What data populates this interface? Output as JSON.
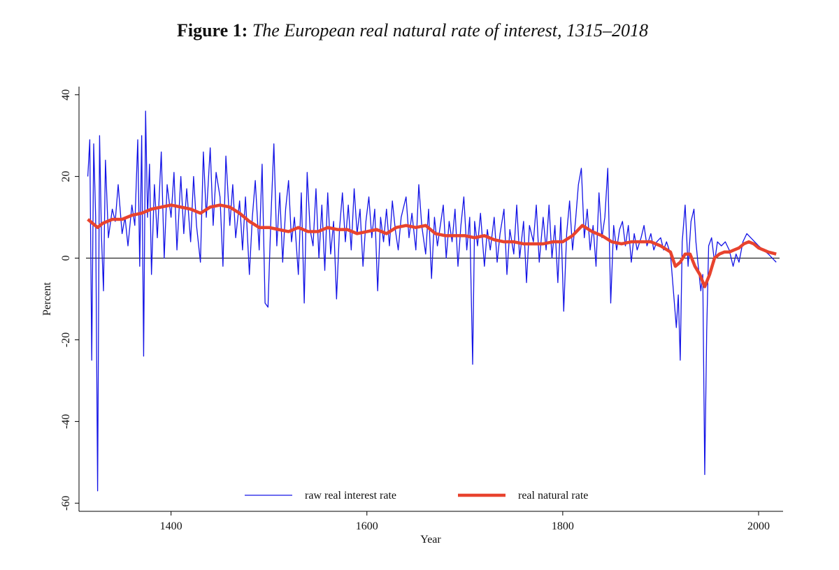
{
  "chart_data": {
    "type": "line",
    "title_label": "Figure 1:",
    "title": "The European real natural rate of interest, 1315–2018",
    "x_label": "Year",
    "y_label": "Percent",
    "xlim": [
      1306,
      2025
    ],
    "ylim": [
      -62,
      42
    ],
    "xticks": [
      1400,
      1600,
      1800,
      2000
    ],
    "yticks": [
      -60,
      -40,
      -20,
      0,
      20,
      40
    ],
    "reference_line": 0,
    "grid": false,
    "legend": "bottom",
    "series": [
      {
        "name": "raw real interest rate",
        "color": "#1414e6",
        "width": 1.3,
        "x": [
          1315,
          1317,
          1319,
          1321,
          1323,
          1325,
          1327,
          1329,
          1331,
          1333,
          1336,
          1340,
          1343,
          1346,
          1350,
          1353,
          1356,
          1360,
          1363,
          1366,
          1368,
          1370,
          1372,
          1374,
          1376,
          1378,
          1380,
          1383,
          1386,
          1390,
          1393,
          1396,
          1400,
          1403,
          1406,
          1410,
          1413,
          1416,
          1420,
          1423,
          1426,
          1430,
          1433,
          1436,
          1440,
          1443,
          1446,
          1450,
          1453,
          1456,
          1460,
          1463,
          1466,
          1470,
          1473,
          1476,
          1480,
          1483,
          1486,
          1490,
          1493,
          1496,
          1499,
          1502,
          1505,
          1508,
          1511,
          1514,
          1517,
          1520,
          1523,
          1526,
          1530,
          1533,
          1536,
          1539,
          1542,
          1545,
          1548,
          1551,
          1554,
          1557,
          1560,
          1563,
          1566,
          1569,
          1572,
          1575,
          1578,
          1581,
          1584,
          1587,
          1590,
          1593,
          1596,
          1599,
          1602,
          1605,
          1608,
          1611,
          1614,
          1617,
          1620,
          1623,
          1626,
          1629,
          1632,
          1635,
          1640,
          1643,
          1646,
          1650,
          1653,
          1656,
          1660,
          1663,
          1666,
          1669,
          1672,
          1675,
          1678,
          1681,
          1684,
          1687,
          1690,
          1693,
          1696,
          1699,
          1702,
          1705,
          1708,
          1710,
          1713,
          1716,
          1720,
          1723,
          1726,
          1730,
          1733,
          1736,
          1740,
          1743,
          1746,
          1750,
          1753,
          1756,
          1760,
          1763,
          1766,
          1770,
          1773,
          1776,
          1780,
          1783,
          1786,
          1789,
          1792,
          1795,
          1798,
          1801,
          1804,
          1807,
          1810,
          1813,
          1816,
          1819,
          1822,
          1825,
          1828,
          1831,
          1834,
          1837,
          1840,
          1843,
          1846,
          1849,
          1852,
          1855,
          1858,
          1861,
          1864,
          1867,
          1870,
          1873,
          1876,
          1880,
          1883,
          1886,
          1890,
          1893,
          1896,
          1900,
          1903,
          1906,
          1910,
          1913,
          1916,
          1918,
          1920,
          1922,
          1925,
          1928,
          1931,
          1934,
          1936,
          1938,
          1941,
          1943,
          1945,
          1947,
          1949,
          1952,
          1955,
          1958,
          1962,
          1966,
          1970,
          1974,
          1977,
          1980,
          1984,
          1988,
          1992,
          1996,
          2000,
          2005,
          2010,
          2014,
          2018
        ],
        "values": [
          20,
          29,
          -25,
          28,
          10,
          -57,
          30,
          5,
          -8,
          24,
          5,
          12,
          9,
          18,
          6,
          10,
          3,
          13,
          8,
          29,
          -2,
          30,
          -24,
          36,
          10,
          23,
          -4,
          18,
          5,
          26,
          0,
          18,
          10,
          21,
          2,
          20,
          6,
          17,
          4,
          20,
          8,
          -1,
          26,
          10,
          27,
          8,
          21,
          15,
          -2,
          25,
          8,
          18,
          5,
          14,
          2,
          15,
          -4,
          10,
          19,
          2,
          23,
          -11,
          -12,
          10,
          28,
          3,
          16,
          -1,
          12,
          19,
          4,
          10,
          -4,
          16,
          -11,
          21,
          7,
          3,
          17,
          0,
          13,
          -3,
          16,
          1,
          9,
          -10,
          7,
          16,
          4,
          13,
          2,
          17,
          6,
          12,
          -2,
          9,
          15,
          5,
          12,
          -8,
          10,
          4,
          12,
          3,
          14,
          7,
          2,
          10,
          15,
          5,
          11,
          2,
          18,
          8,
          1,
          12,
          -5,
          10,
          3,
          8,
          13,
          0,
          9,
          4,
          12,
          -2,
          8,
          15,
          2,
          10,
          -26,
          9,
          3,
          11,
          -2,
          7,
          2,
          10,
          -1,
          6,
          12,
          -4,
          7,
          1,
          13,
          0,
          9,
          -6,
          8,
          4,
          13,
          -1,
          10,
          2,
          13,
          0,
          8,
          -6,
          10,
          -13,
          6,
          14,
          2,
          9,
          18,
          22,
          5,
          12,
          2,
          8,
          -2,
          16,
          5,
          10,
          22,
          -11,
          8,
          2,
          7,
          9,
          3,
          8,
          -1,
          6,
          2,
          5,
          8,
          3,
          6,
          2,
          4,
          5,
          2,
          4,
          1,
          -8,
          -17,
          -9,
          -25,
          4,
          13,
          -2,
          9,
          12,
          4,
          -1,
          -8,
          -4,
          -53,
          -18,
          3,
          5,
          -1,
          4,
          3,
          4,
          2,
          -2,
          1,
          -1,
          4,
          6,
          5,
          4,
          3,
          2,
          1,
          0,
          -1
        ]
      },
      {
        "name": "real natural rate",
        "color": "#e8432e",
        "width": 4.5,
        "x": [
          1315,
          1320,
          1325,
          1330,
          1340,
          1350,
          1360,
          1370,
          1380,
          1390,
          1400,
          1410,
          1420,
          1430,
          1440,
          1450,
          1460,
          1470,
          1480,
          1490,
          1500,
          1510,
          1520,
          1530,
          1540,
          1550,
          1560,
          1570,
          1580,
          1590,
          1600,
          1610,
          1620,
          1630,
          1640,
          1650,
          1660,
          1670,
          1680,
          1690,
          1700,
          1710,
          1720,
          1730,
          1740,
          1750,
          1760,
          1770,
          1780,
          1790,
          1800,
          1810,
          1820,
          1830,
          1840,
          1850,
          1860,
          1870,
          1880,
          1890,
          1900,
          1910,
          1915,
          1920,
          1925,
          1930,
          1935,
          1940,
          1945,
          1950,
          1955,
          1960,
          1965,
          1970,
          1975,
          1980,
          1985,
          1990,
          1995,
          2000,
          2005,
          2010,
          2018
        ],
        "values": [
          9.5,
          8.5,
          7.5,
          8.5,
          9.5,
          9.5,
          10.5,
          11,
          12,
          12.5,
          13,
          12.5,
          12,
          11,
          12.5,
          13,
          12.5,
          11,
          9,
          7.5,
          7.5,
          7,
          6.5,
          7.5,
          6.5,
          6.5,
          7.5,
          7,
          7,
          6,
          6.5,
          7,
          6,
          7.5,
          8,
          7.5,
          8,
          6,
          5.5,
          5.5,
          5.5,
          5,
          5.5,
          4.5,
          4,
          4,
          3.5,
          3.5,
          3.5,
          4,
          4,
          5.5,
          8,
          6.5,
          5.5,
          4,
          3.5,
          4,
          4,
          4,
          3,
          1.5,
          -2,
          -1,
          1,
          1,
          -2,
          -4,
          -7,
          -4,
          0,
          1,
          1.5,
          1.5,
          2,
          2.5,
          3.5,
          4,
          3.5,
          2.5,
          2,
          1.5,
          1
        ]
      }
    ]
  }
}
